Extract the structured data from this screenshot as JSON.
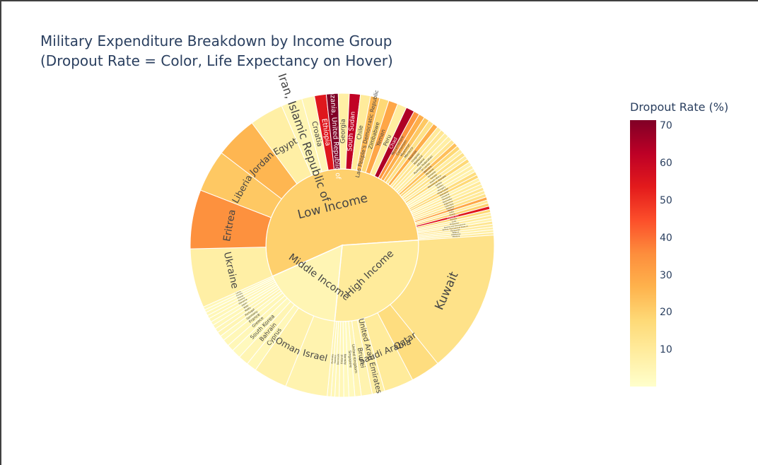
{
  "chart_data": {
    "type": "sunburst",
    "title_lines": [
      "Military Expenditure Breakdown by Income Group",
      "(Dropout Rate = Color, Life Expectancy on Hover)"
    ],
    "colorbar": {
      "title": "Dropout Rate (%)",
      "range": [
        0,
        72
      ],
      "tick_labels": [
        "70",
        "60",
        "50",
        "40",
        "30",
        "20",
        "10"
      ],
      "tick_values": [
        70,
        60,
        50,
        40,
        30,
        20,
        10
      ],
      "colorscale": "YlOrRd",
      "colors": [
        "#ffffcc",
        "#ffeda0",
        "#fed976",
        "#feb24c",
        "#fd8d3c",
        "#fc4e2a",
        "#e31a1c",
        "#bd0026",
        "#800026"
      ]
    },
    "groups": [
      {
        "name": "Low Income",
        "dropout": 20,
        "children": [
          {
            "name": "Ukraine",
            "value": 14,
            "dropout": 8
          },
          {
            "name": "Eritrea",
            "value": 14,
            "dropout": 35
          },
          {
            "name": "Liberia",
            "value": 10,
            "dropout": 22
          },
          {
            "name": "Jordan",
            "value": 10,
            "dropout": 26
          },
          {
            "name": "Egypt",
            "value": 8,
            "dropout": 8
          },
          {
            "name": "Iran, Islamic Republic of",
            "value": 5,
            "dropout": 5
          },
          {
            "name": "Croatia",
            "value": 3,
            "dropout": 5
          },
          {
            "name": "Ethiopia",
            "value": 2.8,
            "dropout": 55
          },
          {
            "name": "Tanzania, United Republic of",
            "value": 2.8,
            "dropout": 72
          },
          {
            "name": "Georgia",
            "value": 2.6,
            "dropout": 8
          },
          {
            "name": "South Sudan",
            "value": 2.6,
            "dropout": 62
          },
          {
            "name": "Chile",
            "value": 2.4,
            "dropout": 10
          },
          {
            "name": "Lao People's Democratic Republic",
            "value": 2.2,
            "dropout": 26
          },
          {
            "name": "Zimbabwe",
            "value": 2.2,
            "dropout": 18
          },
          {
            "name": "Yemen",
            "value": 2.2,
            "dropout": 30
          },
          {
            "name": "Peru",
            "value": 2.2,
            "dropout": 9
          },
          {
            "name": "Chad",
            "value": 2,
            "dropout": 65
          },
          {
            "name": "Mozambique",
            "value": 1.4,
            "dropout": 34
          },
          {
            "name": "Cameroon",
            "value": 1.4,
            "dropout": 28
          },
          {
            "name": "Myanmar",
            "value": 1.3,
            "dropout": 22
          },
          {
            "name": "Morocco",
            "value": 1.3,
            "dropout": 14
          },
          {
            "name": "Rwanda",
            "value": 1.2,
            "dropout": 28
          },
          {
            "name": "Uruguay",
            "value": 1.1,
            "dropout": 10
          },
          {
            "name": "Malaysia",
            "value": 1.1,
            "dropout": 12
          },
          {
            "name": "Albania",
            "value": 1.1,
            "dropout": 9
          },
          {
            "name": "Russian Federation",
            "value": 1.1,
            "dropout": 8
          },
          {
            "name": "Sri Lanka",
            "value": 1.0,
            "dropout": 12
          },
          {
            "name": "Namibia",
            "value": 1.0,
            "dropout": 24
          },
          {
            "name": "Panama",
            "value": 1.0,
            "dropout": 18
          },
          {
            "name": "Armenia",
            "value": 0.95,
            "dropout": 9
          },
          {
            "name": "Tunisia",
            "value": 0.95,
            "dropout": 14
          },
          {
            "name": "South Africa",
            "value": 0.9,
            "dropout": 9
          },
          {
            "name": "Dominican Republic",
            "value": 0.9,
            "dropout": 18
          },
          {
            "name": "Serbia",
            "value": 0.9,
            "dropout": 6
          },
          {
            "name": "Turkey",
            "value": 0.85,
            "dropout": 8
          },
          {
            "name": "Hungary",
            "value": 0.85,
            "dropout": 6
          },
          {
            "name": "Timor-Leste",
            "value": 0.85,
            "dropout": 16
          },
          {
            "name": "Botswana",
            "value": 0.8,
            "dropout": 18
          },
          {
            "name": "Lithuania",
            "value": 0.8,
            "dropout": 6
          },
          {
            "name": "Romania",
            "value": 0.8,
            "dropout": 10
          },
          {
            "name": "Seychelles",
            "value": 0.8,
            "dropout": 8
          },
          {
            "name": "Argentina",
            "value": 0.8,
            "dropout": 12
          },
          {
            "name": "Colombia",
            "value": 0.8,
            "dropout": 10
          },
          {
            "name": "Bulgaria",
            "value": 0.8,
            "dropout": 14
          },
          {
            "name": "Malawi",
            "value": 0.75,
            "dropout": 30
          },
          {
            "name": "India",
            "value": 0.75,
            "dropout": 10
          },
          {
            "name": "Ghana",
            "value": 0.75,
            "dropout": 20
          },
          {
            "name": "Burkina Faso",
            "value": 0.75,
            "dropout": 55
          },
          {
            "name": "Zambia",
            "value": 0.75,
            "dropout": 18
          },
          {
            "name": "Cuba",
            "value": 0.7,
            "dropout": 8
          },
          {
            "name": "Philippines",
            "value": 0.7,
            "dropout": 10
          },
          {
            "name": "Bosnia and Herzegovina",
            "value": 0.7,
            "dropout": 6
          },
          {
            "name": "Bolivia, Plurinational State of",
            "value": 0.7,
            "dropout": 12
          },
          {
            "name": "Kyrgyzstan",
            "value": 0.65,
            "dropout": 10
          },
          {
            "name": "Belarus",
            "value": 0.65,
            "dropout": 8
          },
          {
            "name": "Uzbekistan",
            "value": 0.65,
            "dropout": 8
          },
          {
            "name": "Moldova",
            "value": 0.6,
            "dropout": 10
          }
        ]
      },
      {
        "name": "High Income",
        "dropout": 10,
        "children": [
          {
            "name": "Kuwait",
            "value": 34,
            "dropout": 14
          },
          {
            "name": "Qatar",
            "value": 7,
            "dropout": 16
          },
          {
            "name": "Saudi Arabia",
            "value": 7,
            "dropout": 10
          },
          {
            "name": "United Arab Emirates",
            "value": 3,
            "dropout": 8
          },
          {
            "name": "Brunei",
            "value": 2.6,
            "dropout": 6
          },
          {
            "name": "United Kingdom",
            "value": 1.5,
            "dropout": 5
          },
          {
            "name": "Singapore",
            "value": 1.4,
            "dropout": 3
          },
          {
            "name": "Norway",
            "value": 1.2,
            "dropout": 3
          },
          {
            "name": "Finland",
            "value": 1.1,
            "dropout": 4
          },
          {
            "name": "Denmark",
            "value": 1.0,
            "dropout": 4
          },
          {
            "name": "Sweden",
            "value": 0.9,
            "dropout": 4
          },
          {
            "name": "Australia",
            "value": 0.9,
            "dropout": 5
          }
        ]
      },
      {
        "name": "Middle Income",
        "dropout": 5,
        "children": [
          {
            "name": "Israel",
            "value": 10,
            "dropout": 6
          },
          {
            "name": "Oman",
            "value": 8,
            "dropout": 7
          },
          {
            "name": "Cyprus",
            "value": 2.4,
            "dropout": 4
          },
          {
            "name": "Bahrain",
            "value": 2.4,
            "dropout": 5
          },
          {
            "name": "South Korea",
            "value": 2.2,
            "dropout": 3
          },
          {
            "name": "Greece",
            "value": 1.6,
            "dropout": 4
          },
          {
            "name": "France",
            "value": 1.6,
            "dropout": 4
          },
          {
            "name": "Germany",
            "value": 1.2,
            "dropout": 3
          },
          {
            "name": "Portugal",
            "value": 1.1,
            "dropout": 5
          },
          {
            "name": "Malta",
            "value": 1.0,
            "dropout": 4
          },
          {
            "name": "Italy",
            "value": 1.0,
            "dropout": 4
          },
          {
            "name": "Japan",
            "value": 0.9,
            "dropout": 3
          },
          {
            "name": "Slovenia",
            "value": 0.9,
            "dropout": 4
          },
          {
            "name": "Estonia",
            "value": 0.8,
            "dropout": 4
          },
          {
            "name": "Poland",
            "value": 0.8,
            "dropout": 4
          },
          {
            "name": "Canada",
            "value": 0.7,
            "dropout": 3
          },
          {
            "name": "Latvia",
            "value": 0.7,
            "dropout": 4
          }
        ]
      }
    ]
  }
}
